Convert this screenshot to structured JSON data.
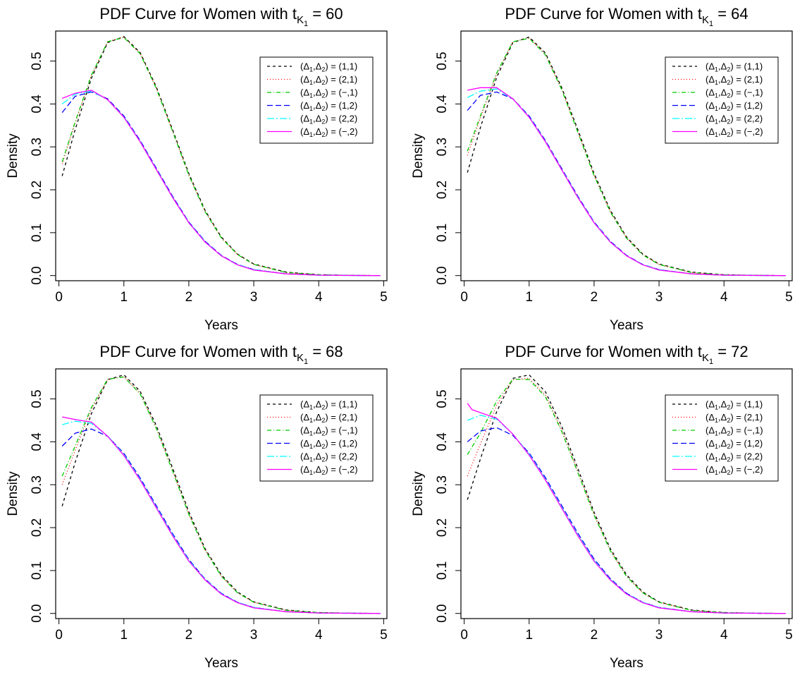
{
  "figure": {
    "title_prefix": "PDF Curve for Women with t",
    "title_sub": "K",
    "title_subsub": "1",
    "xlabel": "Years",
    "ylabel": "Density",
    "xticks": [
      0,
      1,
      2,
      3,
      4,
      5
    ],
    "yticks": [
      0.0,
      0.1,
      0.2,
      0.3,
      0.4,
      0.5
    ],
    "xlim": [
      -0.05,
      5.05
    ],
    "ylim": [
      -0.012,
      0.57
    ],
    "legend_position": "top-right"
  },
  "legend": [
    {
      "d1": "1",
      "d2": "1",
      "color": "#000000",
      "dash": "4,4"
    },
    {
      "d1": "2",
      "d2": "1",
      "color": "#ff0000",
      "dash": "1,3"
    },
    {
      "d1": "−",
      "d2": "1",
      "color": "#00cd00",
      "dash": "6,3,1,3"
    },
    {
      "d1": "1",
      "d2": "2",
      "color": "#0000ff",
      "dash": "8,4"
    },
    {
      "d1": "2",
      "d2": "2",
      "color": "#00ffff",
      "dash": "10,3,2,3"
    },
    {
      "d1": "−",
      "d2": "2",
      "color": "#ff00ff",
      "dash": "none"
    }
  ],
  "chart_data": [
    {
      "type": "line",
      "title": "PDF Curve for Women with t_K1 = 60",
      "t_value": "60",
      "xlabel": "Years",
      "ylabel": "Density",
      "xlim": [
        0,
        5
      ],
      "ylim": [
        0,
        0.55
      ],
      "series": [
        {
          "name": "(Δ1,Δ2) = (1,1)",
          "x": [
            0.05,
            0.25,
            0.5,
            0.75,
            1.0,
            1.25,
            1.5,
            1.75,
            2.0,
            2.25,
            2.5,
            2.75,
            3.0,
            3.5,
            4.0,
            4.5,
            4.95
          ],
          "y": [
            0.232,
            0.34,
            0.46,
            0.543,
            0.557,
            0.52,
            0.44,
            0.34,
            0.238,
            0.152,
            0.09,
            0.05,
            0.027,
            0.008,
            0.002,
            0.0005,
            0.0
          ]
        },
        {
          "name": "(Δ1,Δ2) = (2,1)",
          "x": [
            0.05,
            0.25,
            0.5,
            0.75,
            1.0,
            1.25,
            1.5,
            1.75,
            2.0,
            2.25,
            2.5,
            2.75,
            3.0,
            3.5,
            4.0,
            4.5,
            4.95
          ],
          "y": [
            0.26,
            0.355,
            0.466,
            0.545,
            0.556,
            0.518,
            0.437,
            0.337,
            0.235,
            0.15,
            0.088,
            0.049,
            0.026,
            0.007,
            0.002,
            0.0005,
            0.0
          ]
        },
        {
          "name": "(Δ1,Δ2) = (−,1)",
          "x": [
            0.05,
            0.25,
            0.5,
            0.75,
            1.0,
            1.25,
            1.5,
            1.75,
            2.0,
            2.25,
            2.5,
            2.75,
            3.0,
            3.5,
            4.0,
            4.5,
            4.95
          ],
          "y": [
            0.265,
            0.358,
            0.467,
            0.545,
            0.555,
            0.517,
            0.436,
            0.336,
            0.234,
            0.149,
            0.088,
            0.049,
            0.026,
            0.007,
            0.002,
            0.0005,
            0.0
          ]
        },
        {
          "name": "(Δ1,Δ2) = (1,2)",
          "x": [
            0.05,
            0.25,
            0.5,
            0.75,
            1.0,
            1.25,
            1.5,
            1.75,
            2.0,
            2.25,
            2.5,
            2.75,
            3.0,
            3.5,
            4.0,
            4.5,
            4.95
          ],
          "y": [
            0.38,
            0.418,
            0.428,
            0.412,
            0.372,
            0.315,
            0.25,
            0.185,
            0.125,
            0.08,
            0.047,
            0.026,
            0.014,
            0.004,
            0.001,
            0.0003,
            0.0
          ]
        },
        {
          "name": "(Δ1,Δ2) = (2,2)",
          "x": [
            0.05,
            0.25,
            0.5,
            0.75,
            1.0,
            1.25,
            1.5,
            1.75,
            2.0,
            2.25,
            2.5,
            2.75,
            3.0,
            3.5,
            4.0,
            4.5,
            4.95
          ],
          "y": [
            0.4,
            0.423,
            0.43,
            0.41,
            0.37,
            0.313,
            0.248,
            0.183,
            0.124,
            0.079,
            0.046,
            0.026,
            0.014,
            0.004,
            0.001,
            0.0003,
            0.0
          ]
        },
        {
          "name": "(Δ1,Δ2) = (−,2)",
          "x": [
            0.05,
            0.25,
            0.5,
            0.75,
            1.0,
            1.25,
            1.5,
            1.75,
            2.0,
            2.25,
            2.5,
            2.75,
            3.0,
            3.5,
            4.0,
            4.5,
            4.95
          ],
          "y": [
            0.413,
            0.425,
            0.432,
            0.41,
            0.369,
            0.312,
            0.247,
            0.182,
            0.123,
            0.078,
            0.046,
            0.025,
            0.013,
            0.004,
            0.001,
            0.0003,
            0.0
          ]
        }
      ]
    },
    {
      "type": "line",
      "title": "PDF Curve for Women with t_K1 = 64",
      "t_value": "64",
      "xlabel": "Years",
      "ylabel": "Density",
      "xlim": [
        0,
        5
      ],
      "ylim": [
        0,
        0.55
      ],
      "series": [
        {
          "name": "(Δ1,Δ2) = (1,1)",
          "x": [
            0.05,
            0.25,
            0.5,
            0.75,
            1.0,
            1.25,
            1.5,
            1.75,
            2.0,
            2.25,
            2.5,
            2.75,
            3.0,
            3.5,
            4.0,
            4.5,
            4.95
          ],
          "y": [
            0.24,
            0.345,
            0.462,
            0.543,
            0.556,
            0.519,
            0.439,
            0.34,
            0.238,
            0.152,
            0.09,
            0.05,
            0.027,
            0.008,
            0.002,
            0.0005,
            0.0
          ]
        },
        {
          "name": "(Δ1,Δ2) = (2,1)",
          "x": [
            0.05,
            0.25,
            0.5,
            0.75,
            1.0,
            1.25,
            1.5,
            1.75,
            2.0,
            2.25,
            2.5,
            2.75,
            3.0,
            3.5,
            4.0,
            4.5,
            4.95
          ],
          "y": [
            0.28,
            0.367,
            0.47,
            0.545,
            0.554,
            0.516,
            0.435,
            0.335,
            0.234,
            0.149,
            0.088,
            0.049,
            0.026,
            0.007,
            0.002,
            0.0005,
            0.0
          ]
        },
        {
          "name": "(Δ1,Δ2) = (−,1)",
          "x": [
            0.05,
            0.25,
            0.5,
            0.75,
            1.0,
            1.25,
            1.5,
            1.75,
            2.0,
            2.25,
            2.5,
            2.75,
            3.0,
            3.5,
            4.0,
            4.5,
            4.95
          ],
          "y": [
            0.29,
            0.372,
            0.472,
            0.545,
            0.553,
            0.515,
            0.434,
            0.334,
            0.233,
            0.148,
            0.087,
            0.048,
            0.026,
            0.007,
            0.002,
            0.0005,
            0.0
          ]
        },
        {
          "name": "(Δ1,Δ2) = (1,2)",
          "x": [
            0.05,
            0.25,
            0.5,
            0.75,
            1.0,
            1.25,
            1.5,
            1.75,
            2.0,
            2.25,
            2.5,
            2.75,
            3.0,
            3.5,
            4.0,
            4.5,
            4.95
          ],
          "y": [
            0.385,
            0.42,
            0.428,
            0.412,
            0.372,
            0.315,
            0.25,
            0.185,
            0.125,
            0.08,
            0.047,
            0.026,
            0.014,
            0.004,
            0.001,
            0.0003,
            0.0
          ]
        },
        {
          "name": "(Δ1,Δ2) = (2,2)",
          "x": [
            0.05,
            0.25,
            0.5,
            0.75,
            1.0,
            1.25,
            1.5,
            1.75,
            2.0,
            2.25,
            2.5,
            2.75,
            3.0,
            3.5,
            4.0,
            4.5,
            4.95
          ],
          "y": [
            0.415,
            0.43,
            0.435,
            0.412,
            0.37,
            0.313,
            0.248,
            0.183,
            0.124,
            0.079,
            0.046,
            0.026,
            0.014,
            0.004,
            0.001,
            0.0003,
            0.0
          ]
        },
        {
          "name": "(Δ1,Δ2) = (−,2)",
          "x": [
            0.05,
            0.25,
            0.5,
            0.75,
            1.0,
            1.25,
            1.5,
            1.75,
            2.0,
            2.25,
            2.5,
            2.75,
            3.0,
            3.5,
            4.0,
            4.5,
            4.95
          ],
          "y": [
            0.432,
            0.438,
            0.438,
            0.412,
            0.369,
            0.312,
            0.247,
            0.182,
            0.123,
            0.078,
            0.046,
            0.025,
            0.013,
            0.004,
            0.001,
            0.0003,
            0.0
          ]
        }
      ]
    },
    {
      "type": "line",
      "title": "PDF Curve for Women with t_K1 = 68",
      "t_value": "68",
      "xlabel": "Years",
      "ylabel": "Density",
      "xlim": [
        0,
        5
      ],
      "ylim": [
        0,
        0.55
      ],
      "series": [
        {
          "name": "(Δ1,Δ2) = (1,1)",
          "x": [
            0.05,
            0.25,
            0.5,
            0.75,
            1.0,
            1.25,
            1.5,
            1.75,
            2.0,
            2.25,
            2.5,
            2.75,
            3.0,
            3.5,
            4.0,
            4.5,
            4.95
          ],
          "y": [
            0.25,
            0.352,
            0.466,
            0.545,
            0.556,
            0.518,
            0.438,
            0.339,
            0.237,
            0.151,
            0.09,
            0.05,
            0.027,
            0.008,
            0.002,
            0.0005,
            0.0
          ]
        },
        {
          "name": "(Δ1,Δ2) = (2,1)",
          "x": [
            0.05,
            0.25,
            0.5,
            0.75,
            1.0,
            1.25,
            1.5,
            1.75,
            2.0,
            2.25,
            2.5,
            2.75,
            3.0,
            3.5,
            4.0,
            4.5,
            4.95
          ],
          "y": [
            0.3,
            0.38,
            0.476,
            0.545,
            0.552,
            0.513,
            0.432,
            0.333,
            0.232,
            0.148,
            0.087,
            0.048,
            0.026,
            0.007,
            0.002,
            0.0005,
            0.0
          ]
        },
        {
          "name": "(Δ1,Δ2) = (−,1)",
          "x": [
            0.05,
            0.25,
            0.5,
            0.75,
            1.0,
            1.25,
            1.5,
            1.75,
            2.0,
            2.25,
            2.5,
            2.75,
            3.0,
            3.5,
            4.0,
            4.5,
            4.95
          ],
          "y": [
            0.32,
            0.39,
            0.48,
            0.546,
            0.551,
            0.512,
            0.431,
            0.332,
            0.231,
            0.147,
            0.087,
            0.048,
            0.026,
            0.007,
            0.002,
            0.0005,
            0.0
          ]
        },
        {
          "name": "(Δ1,Δ2) = (1,2)",
          "x": [
            0.05,
            0.25,
            0.5,
            0.75,
            1.0,
            1.25,
            1.5,
            1.75,
            2.0,
            2.25,
            2.5,
            2.75,
            3.0,
            3.5,
            4.0,
            4.5,
            4.95
          ],
          "y": [
            0.39,
            0.42,
            0.43,
            0.413,
            0.373,
            0.316,
            0.251,
            0.186,
            0.126,
            0.08,
            0.047,
            0.026,
            0.014,
            0.004,
            0.001,
            0.0003,
            0.0
          ]
        },
        {
          "name": "(Δ1,Δ2) = (2,2)",
          "x": [
            0.05,
            0.25,
            0.5,
            0.75,
            1.0,
            1.25,
            1.5,
            1.75,
            2.0,
            2.25,
            2.5,
            2.75,
            3.0,
            3.5,
            4.0,
            4.5,
            4.95
          ],
          "y": [
            0.44,
            0.448,
            0.443,
            0.414,
            0.37,
            0.313,
            0.248,
            0.183,
            0.124,
            0.079,
            0.046,
            0.026,
            0.014,
            0.004,
            0.001,
            0.0003,
            0.0
          ]
        },
        {
          "name": "(Δ1,Δ2) = (−,2)",
          "x": [
            0.05,
            0.25,
            0.5,
            0.75,
            1.0,
            1.25,
            1.5,
            1.75,
            2.0,
            2.25,
            2.5,
            2.75,
            3.0,
            3.5,
            4.0,
            4.5,
            4.95
          ],
          "y": [
            0.458,
            0.452,
            0.446,
            0.413,
            0.368,
            0.311,
            0.246,
            0.181,
            0.122,
            0.078,
            0.045,
            0.025,
            0.013,
            0.004,
            0.001,
            0.0003,
            0.0
          ]
        }
      ]
    },
    {
      "type": "line",
      "title": "PDF Curve for Women with t_K1 = 72",
      "t_value": "72",
      "xlabel": "Years",
      "ylabel": "Density",
      "xlim": [
        0,
        5
      ],
      "ylim": [
        0,
        0.55
      ],
      "series": [
        {
          "name": "(Δ1,Δ2) = (1,1)",
          "x": [
            0.05,
            0.25,
            0.5,
            0.75,
            1.0,
            1.25,
            1.5,
            1.75,
            2.0,
            2.25,
            2.5,
            2.75,
            3.0,
            3.5,
            4.0,
            4.5,
            4.95
          ],
          "y": [
            0.265,
            0.36,
            0.47,
            0.548,
            0.556,
            0.517,
            0.437,
            0.338,
            0.236,
            0.151,
            0.09,
            0.05,
            0.027,
            0.008,
            0.002,
            0.0005,
            0.0
          ]
        },
        {
          "name": "(Δ1,Δ2) = (2,1)",
          "x": [
            0.05,
            0.25,
            0.5,
            0.75,
            1.0,
            1.25,
            1.5,
            1.75,
            2.0,
            2.25,
            2.5,
            2.75,
            3.0,
            3.5,
            4.0,
            4.5,
            4.95
          ],
          "y": [
            0.32,
            0.395,
            0.485,
            0.545,
            0.548,
            0.509,
            0.429,
            0.331,
            0.231,
            0.147,
            0.087,
            0.048,
            0.026,
            0.007,
            0.002,
            0.0005,
            0.0
          ]
        },
        {
          "name": "(Δ1,Δ2) = (−,1)",
          "x": [
            0.05,
            0.25,
            0.5,
            0.75,
            1.0,
            1.25,
            1.5,
            1.75,
            2.0,
            2.25,
            2.5,
            2.75,
            3.0,
            3.5,
            4.0,
            4.5,
            4.95
          ],
          "y": [
            0.37,
            0.42,
            0.495,
            0.546,
            0.545,
            0.505,
            0.425,
            0.328,
            0.229,
            0.146,
            0.086,
            0.048,
            0.026,
            0.007,
            0.002,
            0.0005,
            0.0
          ]
        },
        {
          "name": "(Δ1,Δ2) = (1,2)",
          "x": [
            0.05,
            0.25,
            0.5,
            0.75,
            1.0,
            1.25,
            1.5,
            1.75,
            2.0,
            2.25,
            2.5,
            2.75,
            3.0,
            3.5,
            4.0,
            4.5,
            4.95
          ],
          "y": [
            0.4,
            0.425,
            0.433,
            0.415,
            0.374,
            0.317,
            0.252,
            0.187,
            0.127,
            0.081,
            0.047,
            0.026,
            0.014,
            0.004,
            0.001,
            0.0003,
            0.0
          ]
        },
        {
          "name": "(Δ1,Δ2) = (2,2)",
          "x": [
            0.05,
            0.25,
            0.5,
            0.75,
            1.0,
            1.25,
            1.5,
            1.75,
            2.0,
            2.25,
            2.5,
            2.75,
            3.0,
            3.5,
            4.0,
            4.5,
            4.95
          ],
          "y": [
            0.45,
            0.462,
            0.453,
            0.418,
            0.371,
            0.313,
            0.248,
            0.183,
            0.124,
            0.079,
            0.046,
            0.026,
            0.014,
            0.004,
            0.001,
            0.0003,
            0.0
          ]
        },
        {
          "name": "(Δ1,Δ2) = (−,2)",
          "x": [
            0.05,
            0.12,
            0.25,
            0.5,
            0.75,
            1.0,
            1.25,
            1.5,
            1.75,
            2.0,
            2.25,
            2.5,
            2.75,
            3.0,
            3.5,
            4.0,
            4.5,
            4.95
          ],
          "y": [
            0.49,
            0.475,
            0.468,
            0.455,
            0.418,
            0.369,
            0.311,
            0.246,
            0.181,
            0.122,
            0.078,
            0.045,
            0.025,
            0.013,
            0.004,
            0.001,
            0.0003,
            0.0
          ]
        }
      ]
    }
  ]
}
